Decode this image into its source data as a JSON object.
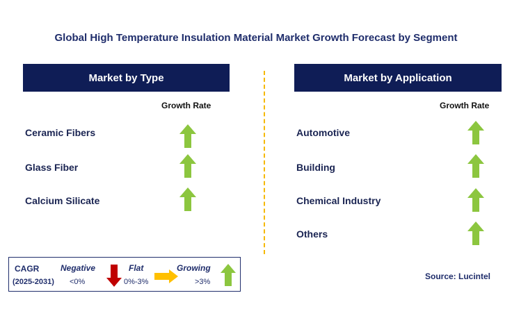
{
  "title": "Global High Temperature Insulation Material Market Growth Forecast by Segment",
  "left_panel": {
    "header": "Market by Type",
    "growth_label": "Growth Rate",
    "rows": [
      {
        "label": "Ceramic Fibers",
        "trend": "growing"
      },
      {
        "label": "Glass Fiber",
        "trend": "growing"
      },
      {
        "label": "Calcium Silicate",
        "trend": "growing"
      }
    ]
  },
  "right_panel": {
    "header": "Market by Application",
    "growth_label": "Growth Rate",
    "rows": [
      {
        "label": "Automotive",
        "trend": "growing"
      },
      {
        "label": "Building",
        "trend": "growing"
      },
      {
        "label": "Chemical Industry",
        "trend": "growing"
      },
      {
        "label": "Others",
        "trend": "growing"
      }
    ]
  },
  "legend": {
    "cagr": "CAGR",
    "years": "(2025-2031)",
    "negative": {
      "label": "Negative",
      "value": "<0%"
    },
    "flat": {
      "label": "Flat",
      "value": "0%-3%"
    },
    "growing": {
      "label": "Growing",
      "value": ">3%"
    }
  },
  "source": "Source: Lucintel",
  "colors": {
    "header_bg": "#0f1d56",
    "up_arrow": "#8cc63f",
    "down_arrow": "#c00000",
    "flat_arrow": "#ffc000",
    "divider": "#f5b800"
  }
}
